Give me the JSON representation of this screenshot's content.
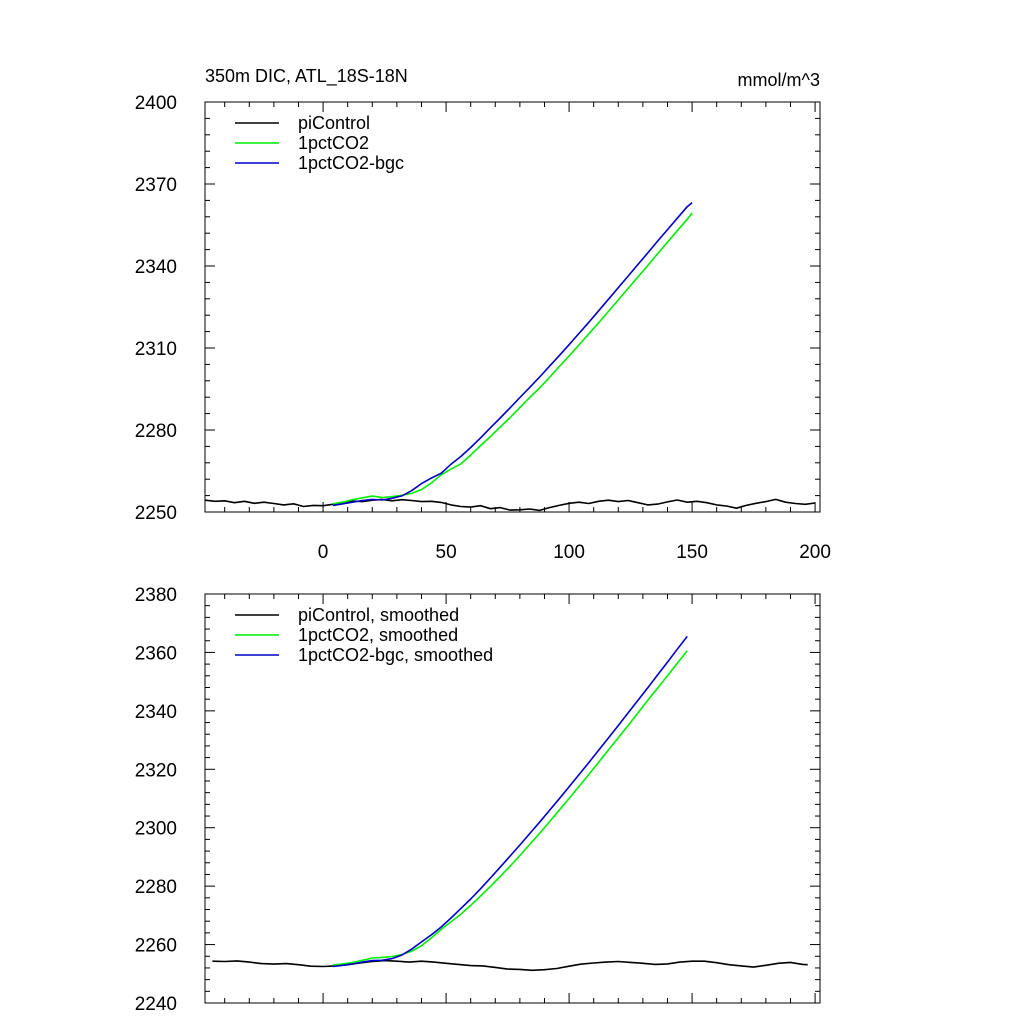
{
  "chart_data": [
    {
      "type": "line",
      "title": "350m DIC, ATL_18S-18N",
      "units": "mmol/m^3",
      "xlim": [
        -48,
        202
      ],
      "ylim": [
        2250,
        2400
      ],
      "xticks": [
        0,
        50,
        100,
        150,
        200
      ],
      "yticks": [
        2250,
        2280,
        2310,
        2340,
        2370,
        2400
      ],
      "show_x_tick_labels": true,
      "grid": false,
      "legend_position": "top-left",
      "series": [
        {
          "name": "piControl",
          "color": "#000000",
          "x": [
            -48,
            -44,
            -40,
            -36,
            -32,
            -28,
            -24,
            -20,
            -16,
            -12,
            -8,
            -4,
            0,
            4,
            8,
            12,
            16,
            20,
            24,
            28,
            32,
            36,
            40,
            44,
            48,
            52,
            56,
            60,
            64,
            68,
            72,
            76,
            80,
            84,
            88,
            92,
            96,
            100,
            104,
            108,
            112,
            116,
            120,
            124,
            128,
            132,
            136,
            140,
            144,
            148,
            152,
            156,
            160,
            164,
            168,
            172,
            176,
            180,
            184,
            188,
            192,
            196,
            200
          ],
          "y": [
            2254.3,
            2253.9,
            2254.1,
            2253.4,
            2253.9,
            2253.2,
            2253.6,
            2253.1,
            2252.6,
            2253.0,
            2252.0,
            2252.4,
            2252.3,
            2252.8,
            2253.6,
            2254.0,
            2253.8,
            2254.3,
            2254.6,
            2254.1,
            2254.5,
            2254.2,
            2253.8,
            2253.9,
            2253.5,
            2252.6,
            2252.0,
            2251.8,
            2252.3,
            2251.2,
            2251.6,
            2250.7,
            2250.8,
            2251.1,
            2250.6,
            2251.6,
            2252.4,
            2253.2,
            2253.6,
            2253.1,
            2253.9,
            2254.3,
            2253.8,
            2254.2,
            2253.4,
            2252.6,
            2252.9,
            2253.7,
            2254.4,
            2253.6,
            2253.9,
            2253.4,
            2252.6,
            2252.2,
            2251.4,
            2252.4,
            2253.2,
            2253.8,
            2254.6,
            2253.6,
            2253.1,
            2252.8,
            2253.3
          ]
        },
        {
          "name": "1pctCO2",
          "color": "#00ee00",
          "x": [
            4,
            8,
            12,
            16,
            20,
            24,
            28,
            32,
            36,
            40,
            44,
            48,
            52,
            56,
            60,
            64,
            68,
            72,
            76,
            80,
            84,
            88,
            92,
            96,
            100,
            104,
            108,
            112,
            116,
            120,
            124,
            128,
            132,
            136,
            140,
            144,
            148,
            150
          ],
          "y": [
            2253.0,
            2253.6,
            2254.5,
            2255.2,
            2255.8,
            2255.3,
            2255.6,
            2256.1,
            2256.8,
            2258.2,
            2260.6,
            2263.6,
            2265.7,
            2267.6,
            2270.8,
            2274.3,
            2277.6,
            2281.1,
            2284.5,
            2288.2,
            2291.9,
            2295.4,
            2299.2,
            2303.2,
            2307.1,
            2311.1,
            2315.2,
            2319.2,
            2323.4,
            2327.6,
            2331.8,
            2336.0,
            2340.2,
            2344.5,
            2348.7,
            2352.9,
            2357.1,
            2359.4
          ]
        },
        {
          "name": "1pctCO2-bgc",
          "color": "#0000cc",
          "x": [
            4,
            8,
            12,
            16,
            20,
            24,
            28,
            32,
            36,
            40,
            44,
            48,
            52,
            56,
            60,
            64,
            68,
            72,
            76,
            80,
            84,
            88,
            92,
            96,
            100,
            104,
            108,
            112,
            116,
            120,
            124,
            128,
            132,
            136,
            140,
            144,
            148,
            150
          ],
          "y": [
            2252.4,
            2253.0,
            2253.6,
            2254.2,
            2254.6,
            2254.4,
            2255.0,
            2255.9,
            2257.8,
            2260.4,
            2262.4,
            2264.2,
            2267.5,
            2270.3,
            2273.6,
            2277.1,
            2280.8,
            2284.4,
            2288.1,
            2291.9,
            2295.6,
            2299.4,
            2303.3,
            2307.2,
            2311.2,
            2315.3,
            2319.4,
            2323.6,
            2327.8,
            2332.1,
            2336.3,
            2340.6,
            2344.8,
            2349.1,
            2353.3,
            2357.5,
            2361.7,
            2363.2
          ]
        }
      ]
    },
    {
      "type": "line",
      "title": "",
      "xlim": [
        -48,
        202
      ],
      "ylim": [
        2240,
        2380
      ],
      "xticks": [
        0,
        50,
        100,
        150,
        200
      ],
      "yticks": [
        2240,
        2260,
        2280,
        2300,
        2320,
        2340,
        2360,
        2380
      ],
      "show_x_tick_labels": false,
      "grid": false,
      "legend_position": "top-left",
      "series": [
        {
          "name": "piControl, smoothed",
          "color": "#000000",
          "x": [
            -45,
            -40,
            -35,
            -30,
            -25,
            -20,
            -15,
            -10,
            -5,
            0,
            5,
            10,
            15,
            20,
            25,
            30,
            35,
            40,
            45,
            50,
            55,
            60,
            65,
            70,
            75,
            80,
            85,
            90,
            95,
            100,
            105,
            110,
            115,
            120,
            125,
            130,
            135,
            140,
            145,
            150,
            155,
            160,
            165,
            170,
            175,
            180,
            185,
            190,
            195,
            197
          ],
          "y": [
            2254.3,
            2254.2,
            2254.4,
            2254.0,
            2253.5,
            2253.3,
            2253.5,
            2253.1,
            2252.6,
            2252.5,
            2252.7,
            2253.1,
            2253.7,
            2254.2,
            2254.5,
            2254.3,
            2254.0,
            2254.3,
            2254.0,
            2253.6,
            2253.2,
            2252.8,
            2252.7,
            2252.2,
            2251.6,
            2251.5,
            2251.2,
            2251.4,
            2251.8,
            2252.6,
            2253.3,
            2253.7,
            2254.0,
            2254.2,
            2253.9,
            2253.6,
            2253.2,
            2253.4,
            2254.0,
            2254.3,
            2254.3,
            2253.8,
            2253.1,
            2252.7,
            2252.3,
            2252.9,
            2253.6,
            2253.9,
            2253.2,
            2253.1
          ]
        },
        {
          "name": "1pctCO2, smoothed",
          "color": "#00ee00",
          "x": [
            4,
            8,
            12,
            16,
            20,
            24,
            28,
            32,
            36,
            40,
            44,
            48,
            52,
            56,
            60,
            64,
            68,
            72,
            76,
            80,
            84,
            88,
            92,
            96,
            100,
            104,
            108,
            112,
            116,
            120,
            124,
            128,
            132,
            136,
            140,
            144,
            148
          ],
          "y": [
            2253.0,
            2253.4,
            2253.9,
            2254.6,
            2255.4,
            2255.6,
            2255.9,
            2256.6,
            2257.7,
            2259.6,
            2262.3,
            2265.2,
            2267.8,
            2270.4,
            2273.4,
            2276.6,
            2279.9,
            2283.3,
            2286.8,
            2290.5,
            2294.3,
            2298.1,
            2302.0,
            2306.0,
            2310.0,
            2314.1,
            2318.2,
            2322.4,
            2326.6,
            2330.8,
            2335.0,
            2339.3,
            2343.6,
            2347.8,
            2352.0,
            2356.3,
            2360.6
          ]
        },
        {
          "name": "1pctCO2-bgc, smoothed",
          "color": "#0000cc",
          "x": [
            4,
            8,
            12,
            16,
            20,
            24,
            28,
            32,
            36,
            40,
            44,
            48,
            52,
            56,
            60,
            64,
            68,
            72,
            76,
            80,
            84,
            88,
            92,
            96,
            100,
            104,
            108,
            112,
            116,
            120,
            124,
            128,
            132,
            136,
            140,
            144,
            148
          ],
          "y": [
            2252.5,
            2252.9,
            2253.4,
            2254.0,
            2254.5,
            2254.6,
            2255.2,
            2256.4,
            2258.4,
            2260.9,
            2263.3,
            2266.0,
            2269.1,
            2272.3,
            2275.6,
            2279.1,
            2282.8,
            2286.5,
            2290.3,
            2294.1,
            2298.0,
            2301.9,
            2305.9,
            2309.9,
            2314.0,
            2318.1,
            2322.3,
            2326.5,
            2330.7,
            2335.0,
            2339.3,
            2343.6,
            2347.9,
            2352.3,
            2356.7,
            2361.1,
            2365.5
          ]
        }
      ]
    }
  ]
}
